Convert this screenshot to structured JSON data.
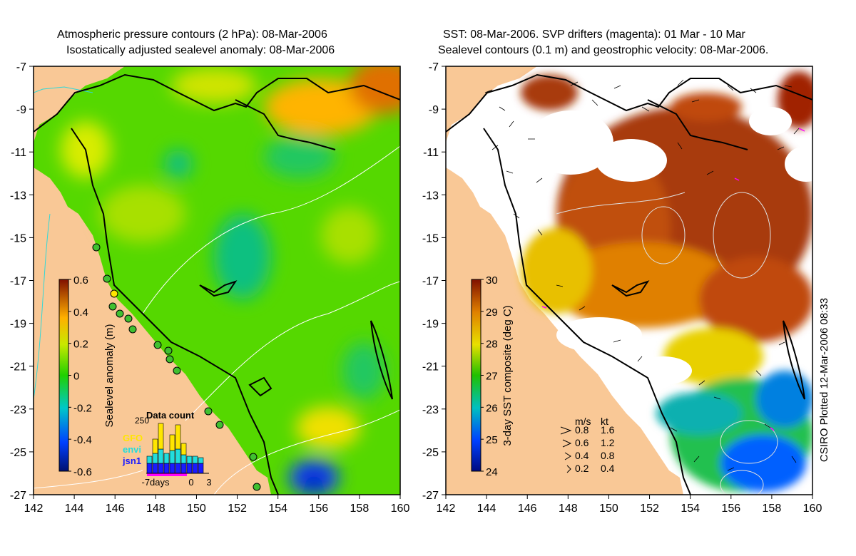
{
  "left_panel": {
    "title_line1": "Atmospheric pressure contours (2 hPa): 08-Mar-2006",
    "title_line2": "Isostatically adjusted sealevel anomaly: 08-Mar-2006",
    "colorbar": {
      "label": "Sealevel anomaly (m)",
      "ticks": [
        "0.6",
        "0.4",
        "0.2",
        "0",
        "-0.2",
        "-0.4",
        "-0.6"
      ]
    },
    "inset": {
      "title": "Data count",
      "ymax_label": "250",
      "legend": [
        {
          "label": "GFO",
          "color": "#ffe600"
        },
        {
          "label": "envi",
          "color": "#22dddd"
        },
        {
          "label": "jsn1",
          "color": "#1a1aff"
        }
      ],
      "xticks": [
        "-7days",
        "0",
        "3"
      ]
    }
  },
  "right_panel": {
    "title_line1": "SST: 08-Mar-2006. SVP drifters (magenta): 01 Mar - 10 Mar",
    "title_line2": "Sealevel contours (0.1 m) and geostrophic velocity: 08-Mar-2006.",
    "colorbar": {
      "label": "3-day SST composite (deg C)",
      "ticks": [
        "30",
        "29",
        "28",
        "27",
        "26",
        "25",
        "24"
      ]
    },
    "velocity_legend": {
      "header_ms": "m/s",
      "header_kt": "kt",
      "rows": [
        {
          "ms": "0.8",
          "kt": "1.6"
        },
        {
          "ms": "0.6",
          "kt": "1.2"
        },
        {
          "ms": "0.4",
          "kt": "0.8"
        },
        {
          "ms": "0.2",
          "kt": "0.4"
        }
      ]
    },
    "side_note": "CSIRO Plotted 12-Mar-2006 08:33"
  },
  "axes": {
    "x_ticks": [
      "142",
      "144",
      "146",
      "148",
      "150",
      "152",
      "154",
      "156",
      "158",
      "160"
    ],
    "y_ticks": [
      "-7",
      "-9",
      "-11",
      "-13",
      "-15",
      "-17",
      "-19",
      "-21",
      "-23",
      "-25",
      "-27"
    ],
    "lon_range": [
      142,
      160
    ],
    "lat_range": [
      -27,
      -7
    ]
  },
  "colors": {
    "land": "#f9c896",
    "coast": "#000000",
    "sla_base": "#55d800",
    "sst_warm": "#a83a08"
  }
}
